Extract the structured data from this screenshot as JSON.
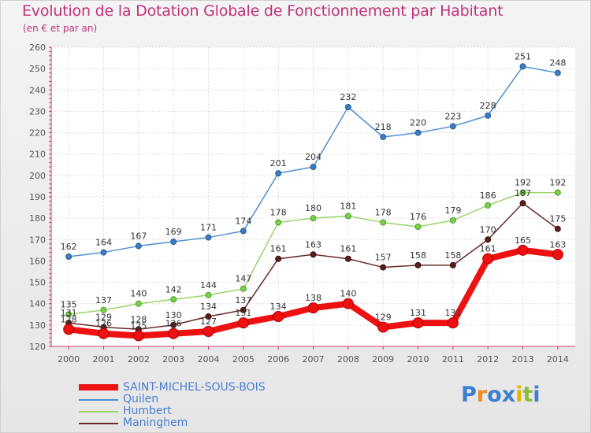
{
  "title": "Evolution de la Dotation Globale de Fonctionnement par Habitant",
  "subtitle": "(en € et par an)",
  "logo": {
    "letters": [
      "P",
      "r",
      "o",
      "x",
      "i",
      "t",
      "i"
    ],
    "colors": [
      "#3c7fd0",
      "#f08a1c",
      "#3c7fd0",
      "#3c7fd0",
      "#e3b400",
      "#8cbd3a",
      "#3c7fd0"
    ]
  },
  "chart_data": {
    "type": "line",
    "x": [
      2000,
      2001,
      2002,
      2003,
      2004,
      2005,
      2006,
      2007,
      2008,
      2009,
      2010,
      2011,
      2012,
      2013,
      2014
    ],
    "ylim": [
      120,
      260
    ],
    "yticks": [
      120,
      130,
      140,
      150,
      160,
      170,
      180,
      190,
      200,
      210,
      220,
      230,
      240,
      250,
      260
    ],
    "grid": true,
    "legend_position": "bottom-left",
    "series": [
      {
        "name": "Quilen",
        "color": "#4f8fd0",
        "values": [
          162,
          164,
          167,
          169,
          171,
          174,
          201,
          204,
          232,
          218,
          220,
          223,
          228,
          251,
          248
        ]
      },
      {
        "name": "Humbert",
        "color": "#9ad46a",
        "values": [
          135,
          137,
          140,
          142,
          144,
          147,
          178,
          180,
          181,
          178,
          176,
          179,
          186,
          192,
          192
        ]
      },
      {
        "name": "Maninghem",
        "color": "#6b2a2a",
        "values": [
          131,
          129,
          128,
          130,
          134,
          137,
          161,
          163,
          161,
          157,
          158,
          158,
          170,
          187,
          175
        ]
      },
      {
        "name": "SAINT-MICHEL-SOUS-BOIS",
        "color": "#ee1111",
        "values": [
          128,
          126,
          125,
          126,
          127,
          131,
          134,
          138,
          140,
          129,
          131,
          131,
          161,
          165,
          163
        ]
      }
    ]
  }
}
